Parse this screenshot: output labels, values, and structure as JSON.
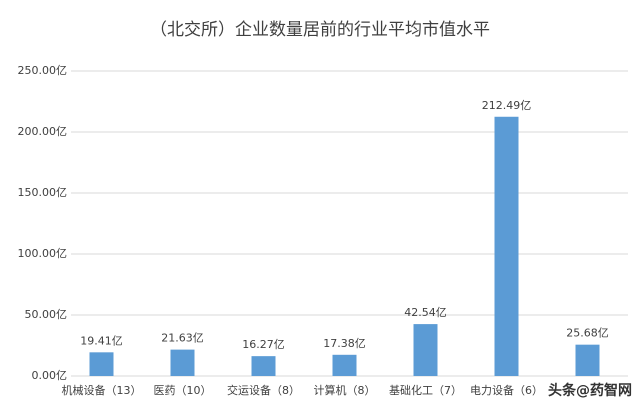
{
  "chart_data": {
    "type": "bar",
    "title": "（北交所）企业数量居前的行业平均市值水平",
    "categories": [
      "机械设备（13）",
      "医药（10）",
      "交运设备（8）",
      "计算机（8）",
      "基础化工（7）",
      "电力设备（6）",
      null
    ],
    "values": [
      19.41,
      21.63,
      16.27,
      17.38,
      42.54,
      212.49,
      25.68
    ],
    "value_labels": [
      "19.41亿",
      "21.63亿",
      "16.27亿",
      "17.38亿",
      "42.54亿",
      "212.49亿",
      "25.68亿"
    ],
    "color": "#5b9bd5",
    "ylim": [
      0,
      250
    ],
    "yticks": [
      {
        "value": 0,
        "label": "0.00亿"
      },
      {
        "value": 50,
        "label": "50.00亿"
      },
      {
        "value": 100,
        "label": "100.00亿"
      },
      {
        "value": 150,
        "label": "150.00亿"
      },
      {
        "value": 200,
        "label": "200.00亿"
      },
      {
        "value": 250,
        "label": "250.00亿"
      }
    ],
    "grid": true,
    "watermark": "头条@药智网"
  }
}
